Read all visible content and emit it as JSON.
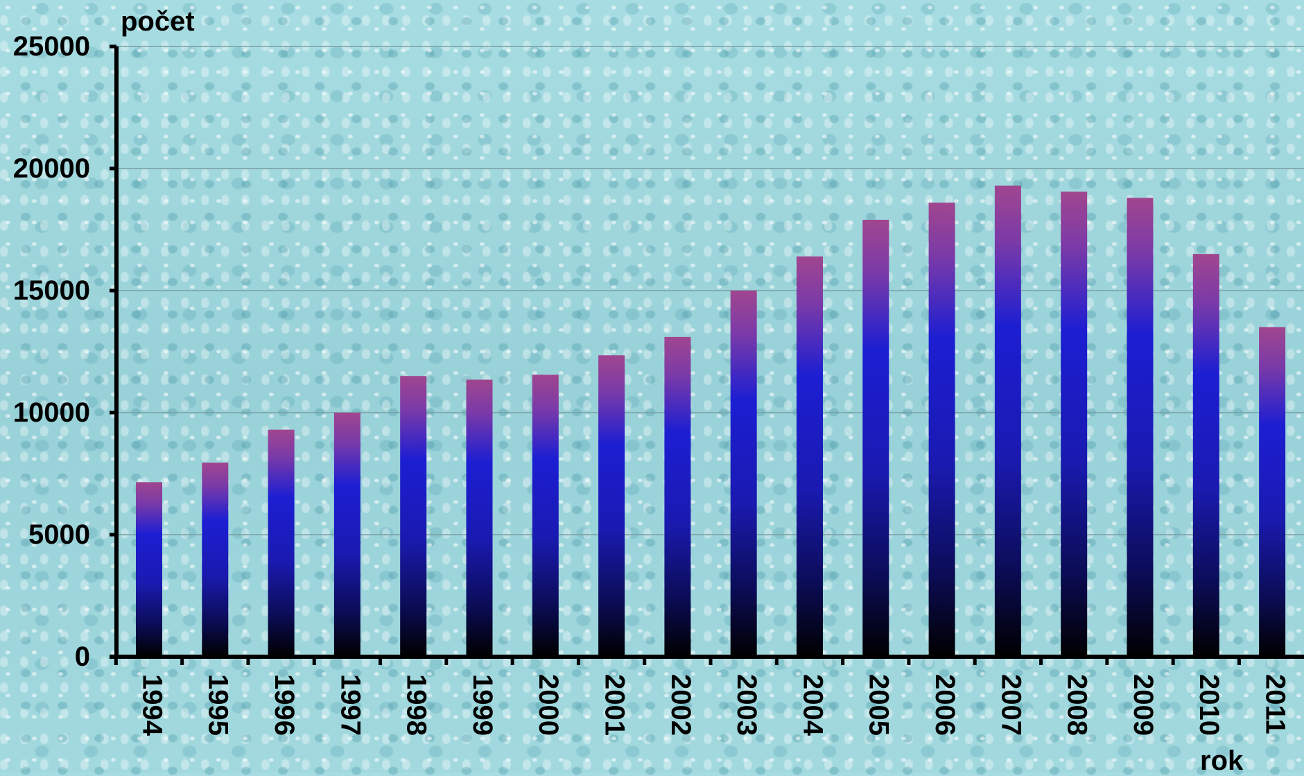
{
  "chart_data": {
    "type": "bar",
    "title": "",
    "ylabel": "počet",
    "xlabel": "rok",
    "categories": [
      "1994",
      "1995",
      "1996",
      "1997",
      "1998",
      "1999",
      "2000",
      "2001",
      "2002",
      "2003",
      "2004",
      "2005",
      "2006",
      "2007",
      "2008",
      "2009",
      "2010",
      "2011"
    ],
    "values": [
      7150,
      7950,
      9300,
      10000,
      11500,
      11350,
      11550,
      12350,
      13100,
      15000,
      16400,
      17900,
      18600,
      19300,
      19050,
      18800,
      16500,
      13500
    ],
    "ylim": [
      0,
      25000
    ],
    "yticks": [
      "0",
      "5000",
      "10000",
      "15000",
      "20000",
      "25000"
    ],
    "grid": true,
    "legend": "none",
    "colors": {
      "bar_top": "#a0468f",
      "bar_mid": "#1c1ed2",
      "bar_bottom": "#000000",
      "axis": "#000000",
      "grid": "#7b9ea2",
      "background": "#9ed6dc"
    }
  }
}
